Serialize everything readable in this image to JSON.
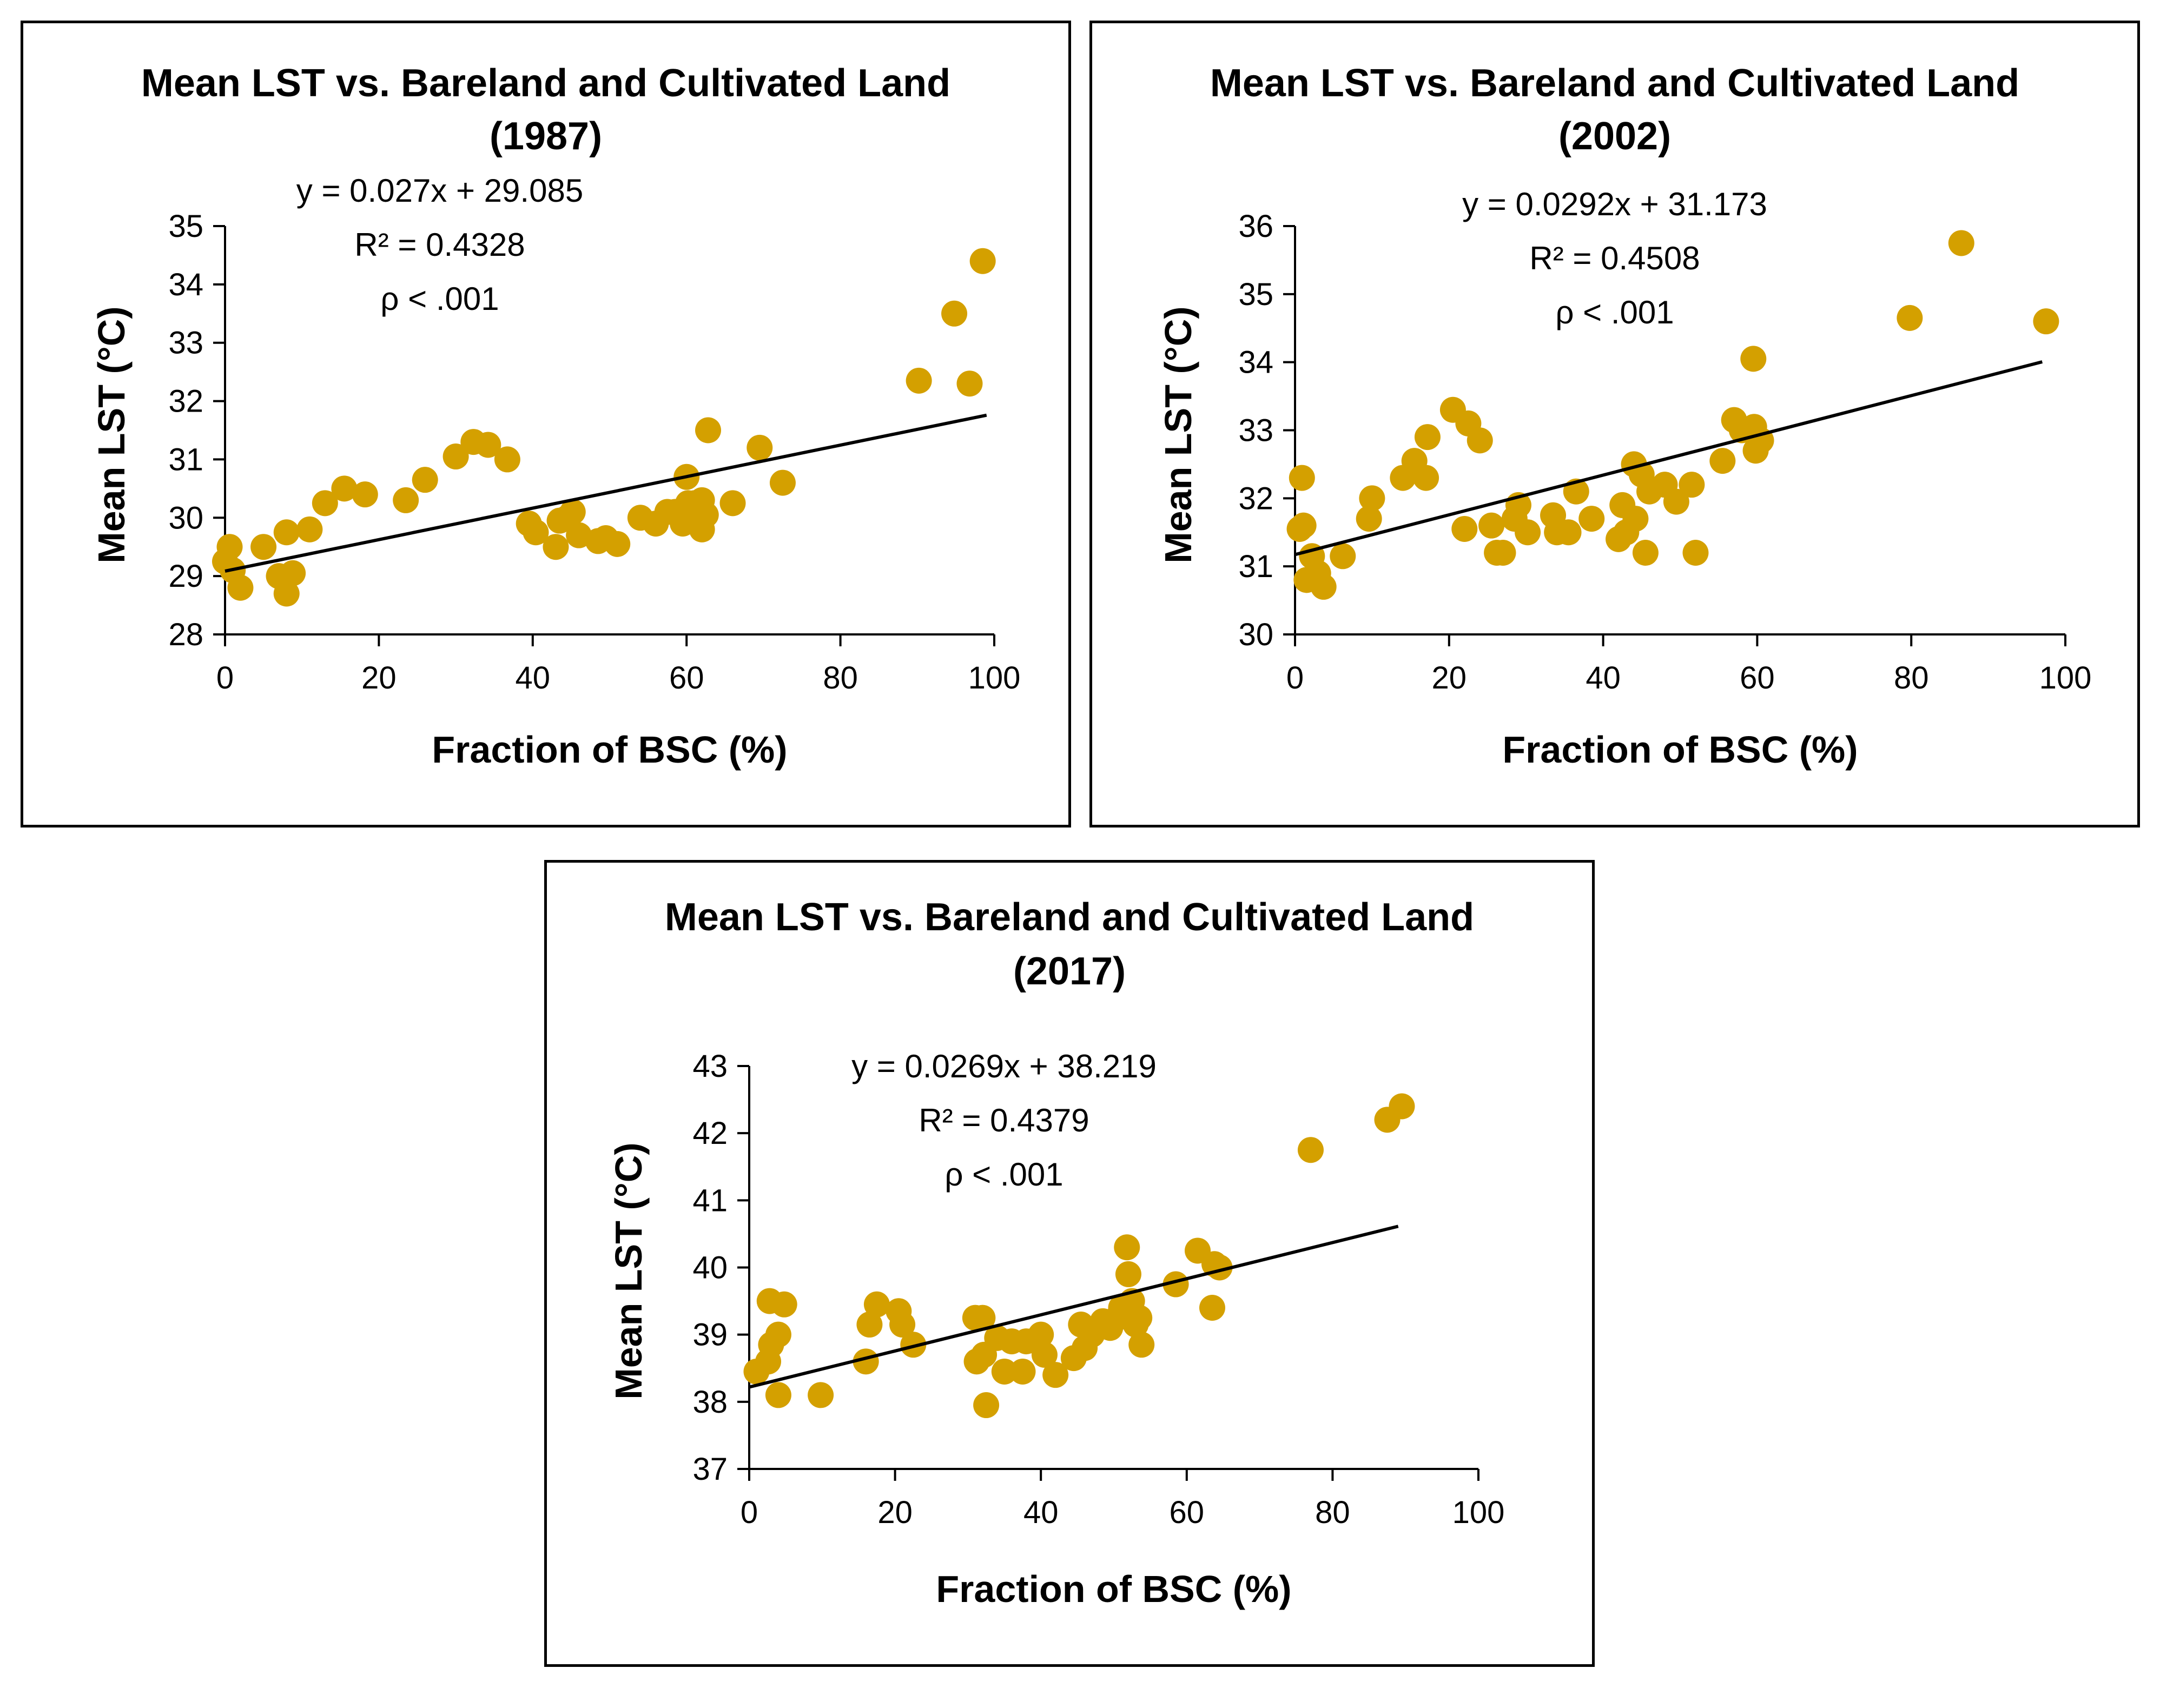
{
  "figure": {
    "marker_color": "#D4A000",
    "line_color": "#000000"
  },
  "chart_data": [
    {
      "type": "scatter",
      "title": "Mean LST vs. Bareland and Cultivated Land",
      "subtitle": "(1987)",
      "xlabel": "Fraction of BSC (%)",
      "ylabel": "Mean LST (°C)",
      "xlim": [
        0,
        100
      ],
      "ylim": [
        28,
        35
      ],
      "xticks": [
        0,
        20,
        40,
        60,
        80,
        100
      ],
      "yticks": [
        28,
        29,
        30,
        31,
        32,
        33,
        34,
        35
      ],
      "equation": "y = 0.027x + 29.085",
      "r_squared": "R² = 0.4328",
      "p_value": "ρ < .001",
      "trendline": {
        "slope": 0.027,
        "intercept": 29.085,
        "x_range": [
          0,
          99
        ]
      },
      "points": [
        [
          0,
          29.25
        ],
        [
          0.6,
          29.5
        ],
        [
          1,
          29.1
        ],
        [
          2,
          28.8
        ],
        [
          5,
          29.5
        ],
        [
          7,
          29
        ],
        [
          8,
          29.75
        ],
        [
          8,
          28.7
        ],
        [
          8.8,
          29.05
        ],
        [
          11,
          29.8
        ],
        [
          13,
          30.25
        ],
        [
          15.5,
          30.5
        ],
        [
          18.2,
          30.4
        ],
        [
          23.5,
          30.3
        ],
        [
          26,
          30.65
        ],
        [
          30,
          31.05
        ],
        [
          32.3,
          31.3
        ],
        [
          34.2,
          31.25
        ],
        [
          36.7,
          31
        ],
        [
          39.5,
          29.9
        ],
        [
          40.4,
          29.75
        ],
        [
          43,
          29.5
        ],
        [
          43.5,
          29.95
        ],
        [
          44.5,
          30
        ],
        [
          45.2,
          30.1
        ],
        [
          46,
          29.7
        ],
        [
          48.5,
          29.6
        ],
        [
          49.5,
          29.65
        ],
        [
          51,
          29.55
        ],
        [
          54,
          30
        ],
        [
          56,
          29.9
        ],
        [
          57.5,
          30.1
        ],
        [
          58.5,
          30.1
        ],
        [
          59.5,
          29.9
        ],
        [
          60,
          30.7
        ],
        [
          60.2,
          30.25
        ],
        [
          61,
          30.25
        ],
        [
          61.5,
          30
        ],
        [
          62,
          30.3
        ],
        [
          62,
          29.8
        ],
        [
          62.8,
          31.5
        ],
        [
          62.5,
          30.05
        ],
        [
          66,
          30.25
        ],
        [
          69.5,
          31.2
        ],
        [
          72.5,
          30.6
        ],
        [
          90.2,
          32.35
        ],
        [
          94.8,
          33.5
        ],
        [
          96.8,
          32.3
        ],
        [
          98.5,
          34.4
        ]
      ]
    },
    {
      "type": "scatter",
      "title": "Mean LST vs. Bareland and Cultivated Land",
      "subtitle": "(2002)",
      "xlabel": "Fraction of BSC (%)",
      "ylabel": "Mean LST (°C)",
      "xlim": [
        0,
        100
      ],
      "ylim": [
        30,
        36
      ],
      "xticks": [
        0,
        20,
        40,
        60,
        80,
        100
      ],
      "yticks": [
        30,
        31,
        32,
        33,
        34,
        35,
        36
      ],
      "equation": "y = 0.0292x + 31.173",
      "r_squared": "R² = 0.4508",
      "p_value": "ρ < .001",
      "trendline": {
        "slope": 0.0292,
        "intercept": 31.173,
        "x_range": [
          0,
          97
        ]
      },
      "points": [
        [
          0.6,
          31.55
        ],
        [
          0.9,
          32.3
        ],
        [
          1.1,
          31.6
        ],
        [
          1.5,
          30.8
        ],
        [
          2.2,
          31.15
        ],
        [
          3,
          30.9
        ],
        [
          3.7,
          30.7
        ],
        [
          6.2,
          31.15
        ],
        [
          9.6,
          31.7
        ],
        [
          10,
          32
        ],
        [
          14,
          32.3
        ],
        [
          15.5,
          32.55
        ],
        [
          17,
          32.3
        ],
        [
          17.2,
          32.9
        ],
        [
          20.5,
          33.3
        ],
        [
          22,
          31.55
        ],
        [
          22.5,
          33.1
        ],
        [
          24,
          32.85
        ],
        [
          25.5,
          31.6
        ],
        [
          26.2,
          31.2
        ],
        [
          27,
          31.2
        ],
        [
          28.5,
          31.7
        ],
        [
          29,
          31.9
        ],
        [
          30.2,
          31.5
        ],
        [
          33.5,
          31.75
        ],
        [
          34,
          31.5
        ],
        [
          35.5,
          31.5
        ],
        [
          36.5,
          32.1
        ],
        [
          38.5,
          31.7
        ],
        [
          42,
          31.4
        ],
        [
          42.5,
          31.9
        ],
        [
          43,
          31.5
        ],
        [
          44,
          32.5
        ],
        [
          44.2,
          31.7
        ],
        [
          45,
          32.35
        ],
        [
          45.5,
          31.2
        ],
        [
          46,
          32.1
        ],
        [
          48,
          32.2
        ],
        [
          49.5,
          31.95
        ],
        [
          51.5,
          32.2
        ],
        [
          52,
          31.2
        ],
        [
          55.5,
          32.55
        ],
        [
          57,
          33.15
        ],
        [
          58,
          33
        ],
        [
          59.5,
          34.05
        ],
        [
          59.6,
          33.05
        ],
        [
          59.8,
          32.7
        ],
        [
          60.5,
          32.85
        ],
        [
          79.8,
          34.65
        ],
        [
          86.5,
          35.75
        ],
        [
          97.5,
          34.6
        ]
      ]
    },
    {
      "type": "scatter",
      "title": "Mean LST vs. Bareland and Cultivated Land",
      "subtitle": "(2017)",
      "xlabel": "Fraction of BSC (%)",
      "ylabel": "Mean LST (°C)",
      "xlim": [
        0,
        100
      ],
      "ylim": [
        37,
        43
      ],
      "xticks": [
        0,
        20,
        40,
        60,
        80,
        100
      ],
      "yticks": [
        37,
        38,
        39,
        40,
        41,
        42,
        43
      ],
      "equation": "y = 0.0269x + 38.219",
      "r_squared": "R² = 0.4379",
      "p_value": "ρ < .001",
      "trendline": {
        "slope": 0.0269,
        "intercept": 38.219,
        "x_range": [
          0,
          89
        ]
      },
      "points": [
        [
          1,
          38.45
        ],
        [
          2.6,
          38.6
        ],
        [
          2.8,
          39.5
        ],
        [
          3,
          38.85
        ],
        [
          4,
          38.1
        ],
        [
          4,
          39
        ],
        [
          4.8,
          39.45
        ],
        [
          9.8,
          38.1
        ],
        [
          16,
          38.6
        ],
        [
          16.5,
          39.15
        ],
        [
          17.5,
          39.45
        ],
        [
          20.5,
          39.35
        ],
        [
          21,
          39.15
        ],
        [
          22.5,
          38.85
        ],
        [
          31,
          39.25
        ],
        [
          31.2,
          38.6
        ],
        [
          32,
          39.25
        ],
        [
          32.2,
          38.7
        ],
        [
          32.5,
          37.95
        ],
        [
          34,
          38.95
        ],
        [
          35,
          38.45
        ],
        [
          36,
          38.9
        ],
        [
          37.5,
          38.45
        ],
        [
          38,
          38.9
        ],
        [
          40,
          39
        ],
        [
          40.5,
          38.7
        ],
        [
          42,
          38.4
        ],
        [
          44.5,
          38.65
        ],
        [
          45.5,
          39.15
        ],
        [
          46,
          38.8
        ],
        [
          47,
          39
        ],
        [
          48.5,
          39.2
        ],
        [
          49.5,
          39.1
        ],
        [
          50.5,
          39.25
        ],
        [
          51,
          39.4
        ],
        [
          51.8,
          40.3
        ],
        [
          52,
          39.9
        ],
        [
          52.5,
          39.5
        ],
        [
          53,
          39.15
        ],
        [
          53.5,
          39.25
        ],
        [
          53.8,
          38.85
        ],
        [
          58.5,
          39.75
        ],
        [
          61.5,
          40.25
        ],
        [
          63.5,
          39.4
        ],
        [
          63.8,
          40.05
        ],
        [
          64.5,
          40
        ],
        [
          77,
          41.75
        ],
        [
          87.5,
          42.2
        ],
        [
          89.5,
          42.4
        ]
      ]
    }
  ]
}
